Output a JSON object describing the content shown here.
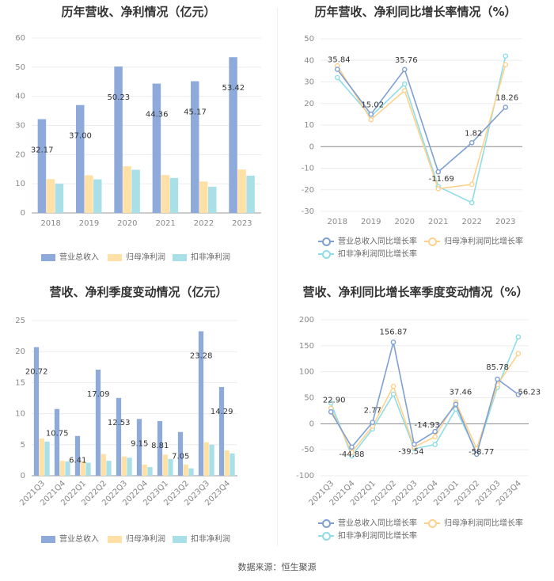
{
  "colors": {
    "revenue": "#8eaadb",
    "netprofit": "#ffe0a6",
    "deducted": "#a9dfe6",
    "revLine": "#7f9fd3",
    "npLine": "#ffd18c",
    "dedLine": "#8fdde6"
  },
  "source": "数据来源：恒生聚源",
  "chart_data": [
    {
      "type": "bar",
      "title": "历年营收、净利情况（亿元）",
      "categories": [
        "2018",
        "2019",
        "2020",
        "2021",
        "2022",
        "2023"
      ],
      "ylim": [
        0,
        60
      ],
      "yticks": [
        0,
        10,
        20,
        30,
        40,
        50,
        60
      ],
      "series": [
        {
          "name": "营业总收入",
          "values": [
            32.17,
            37.0,
            50.23,
            44.36,
            45.17,
            53.42
          ],
          "labels": [
            "32.17",
            "37.00",
            "50.23",
            "44.36",
            "45.17",
            "53.42"
          ]
        },
        {
          "name": "归母净利润",
          "values": [
            11.6,
            12.9,
            16.0,
            13.0,
            10.8,
            14.9
          ]
        },
        {
          "name": "扣非净利润",
          "values": [
            10.0,
            11.5,
            14.8,
            12.0,
            9.0,
            12.8
          ]
        }
      ]
    },
    {
      "type": "line",
      "title": "历年营收、净利同比增长率情况（%）",
      "categories": [
        "2018",
        "2019",
        "2020",
        "2021",
        "2022",
        "2023"
      ],
      "ylim": [
        -30,
        50
      ],
      "yticks": [
        -30,
        -20,
        -10,
        0,
        10,
        20,
        30,
        40,
        50
      ],
      "series": [
        {
          "name": "营业总收入同比增长率",
          "values": [
            35.84,
            15.02,
            35.76,
            -11.69,
            1.82,
            18.26
          ],
          "labels": [
            "35.84",
            "15.02",
            "35.76",
            "-11.69",
            "1.82",
            "18.26"
          ]
        },
        {
          "name": "归母净利润同比增长率",
          "values": [
            37.5,
            12.5,
            26.0,
            -19.5,
            -17.5,
            38.0
          ]
        },
        {
          "name": "扣非净利润同比增长率",
          "values": [
            32.0,
            14.0,
            29.0,
            -18.5,
            -26.0,
            42.0
          ]
        }
      ]
    },
    {
      "type": "bar",
      "title": "营收、净利季度变动情况（亿元）",
      "categories": [
        "2021Q3",
        "2021Q4",
        "2022Q1",
        "2022Q2",
        "2022Q3",
        "2022Q4",
        "2023Q1",
        "2023Q2",
        "2023Q3",
        "2023Q4"
      ],
      "ylim": [
        0,
        25
      ],
      "yticks": [
        0,
        5,
        10,
        15,
        20,
        25
      ],
      "series": [
        {
          "name": "营业总收入",
          "values": [
            20.72,
            10.75,
            6.41,
            17.09,
            12.53,
            9.15,
            8.81,
            7.05,
            23.28,
            14.29
          ],
          "labels": [
            "20.72",
            "10.75",
            "6.41",
            "17.09",
            "12.53",
            "9.15",
            "8.81",
            "7.05",
            "23.28",
            "14.29"
          ]
        },
        {
          "name": "归母净利润",
          "values": [
            6.0,
            2.4,
            2.3,
            3.5,
            3.1,
            1.8,
            3.4,
            1.8,
            5.4,
            4.1
          ]
        },
        {
          "name": "扣非净利润",
          "values": [
            5.5,
            2.3,
            2.1,
            2.4,
            2.9,
            1.4,
            2.7,
            1.2,
            5.0,
            3.6
          ]
        }
      ]
    },
    {
      "type": "line",
      "title": "营收、净利同比增长率季度变动情况（%）",
      "categories": [
        "2021Q3",
        "2021Q4",
        "2022Q1",
        "2022Q2",
        "2022Q3",
        "2022Q4",
        "2023Q1",
        "2023Q2",
        "2023Q3",
        "2023Q4"
      ],
      "ylim": [
        -100,
        200
      ],
      "yticks": [
        -100,
        -50,
        0,
        50,
        100,
        150,
        200
      ],
      "series": [
        {
          "name": "营业总收入同比增长率",
          "values": [
            22.9,
            -44.88,
            2.77,
            156.87,
            -39.54,
            -14.93,
            37.46,
            -58.77,
            85.78,
            56.23
          ],
          "labels": [
            "22.90",
            "-44.88",
            "2.77",
            "156.87",
            "-39.54",
            "-14.93",
            "37.46",
            "-58.77",
            "85.78",
            "56.23"
          ]
        },
        {
          "name": "归母净利润同比增长率",
          "values": [
            30,
            -55,
            -5,
            72,
            -45,
            -25,
            42,
            -48,
            75,
            135
          ]
        },
        {
          "name": "扣非净利润同比增长率",
          "values": [
            40,
            -62,
            -10,
            57,
            -48,
            -40,
            28,
            -55,
            70,
            167
          ]
        }
      ]
    }
  ]
}
